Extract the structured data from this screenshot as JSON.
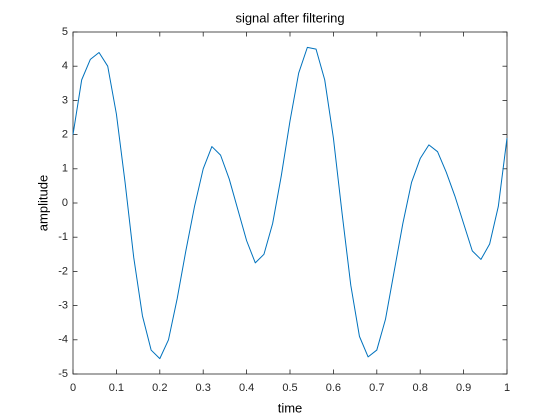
{
  "chart_data": {
    "type": "line",
    "title": "signal after filtering",
    "xlabel": "time",
    "ylabel": "amplitude",
    "x": [
      0,
      0.02,
      0.04,
      0.06,
      0.08,
      0.1,
      0.12,
      0.14,
      0.16,
      0.18,
      0.2,
      0.22,
      0.24,
      0.26,
      0.28,
      0.3,
      0.32,
      0.34,
      0.36,
      0.38,
      0.4,
      0.42,
      0.44,
      0.46,
      0.48,
      0.5,
      0.52,
      0.54,
      0.56,
      0.58,
      0.6,
      0.62,
      0.64,
      0.66,
      0.68,
      0.7,
      0.72,
      0.74,
      0.76,
      0.78,
      0.8,
      0.82,
      0.84,
      0.86,
      0.88,
      0.9,
      0.92,
      0.94,
      0.96,
      0.98,
      1
    ],
    "values": [
      2.0,
      3.6,
      4.2,
      4.4,
      4.0,
      2.6,
      0.6,
      -1.6,
      -3.3,
      -4.3,
      -4.55,
      -4.0,
      -2.8,
      -1.4,
      -0.1,
      1.0,
      1.65,
      1.4,
      0.7,
      -0.2,
      -1.1,
      -1.75,
      -1.5,
      -0.6,
      0.8,
      2.4,
      3.8,
      4.55,
      4.5,
      3.6,
      1.9,
      -0.3,
      -2.4,
      -3.9,
      -4.5,
      -4.3,
      -3.4,
      -2.0,
      -0.6,
      0.6,
      1.3,
      1.7,
      1.5,
      0.9,
      0.2,
      -0.6,
      -1.4,
      -1.65,
      -1.2,
      -0.1,
      1.9
    ],
    "color": "#0072bd",
    "xlim": [
      0,
      1
    ],
    "xticks": [
      0,
      0.1,
      0.2,
      0.3,
      0.4,
      0.5,
      0.6,
      0.7,
      0.8,
      0.9,
      1
    ],
    "ylim": [
      -5,
      5
    ],
    "yticks": [
      -5,
      -4,
      -3,
      -2,
      -1,
      0,
      1,
      2,
      3,
      4,
      5
    ],
    "grid": false
  }
}
